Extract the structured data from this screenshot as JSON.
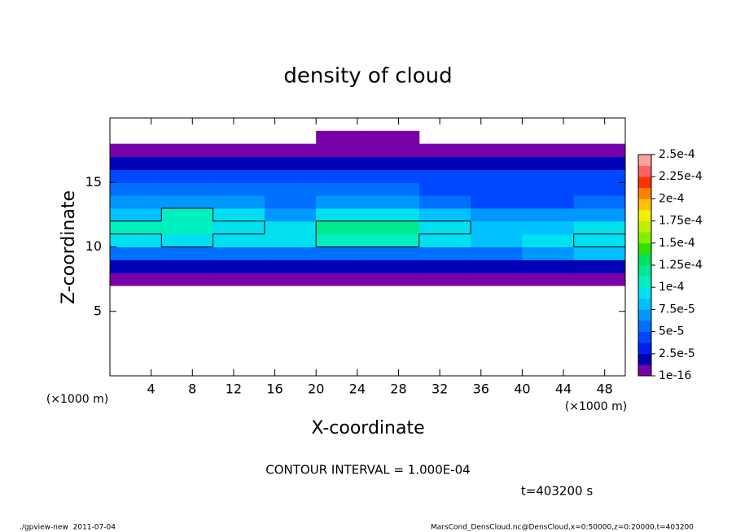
{
  "chart_data": {
    "type": "heatmap",
    "title": "density of cloud",
    "x_label": "X-coordinate",
    "y_label": "Z-coordinate",
    "x_unit": "(×1000 m)",
    "y_unit": "(×1000 m)",
    "xlim": [
      0,
      50
    ],
    "ylim": [
      0,
      20
    ],
    "xticks": [
      4,
      8,
      12,
      16,
      20,
      24,
      28,
      32,
      36,
      40,
      44,
      48
    ],
    "yticks": [
      5,
      10,
      15
    ],
    "x_edges": [
      0,
      5,
      10,
      15,
      20,
      25,
      30,
      35,
      40,
      45,
      50
    ],
    "y_edges": [
      7,
      8,
      9,
      10,
      11,
      12,
      13,
      14,
      15,
      16,
      17,
      18,
      19
    ],
    "values": [
      [
        5e-06,
        5e-06,
        5e-06,
        5e-06,
        5e-06,
        5e-06,
        5e-06,
        5e-06,
        5e-06,
        5e-06
      ],
      [
        2e-05,
        2e-05,
        2e-05,
        2e-05,
        2e-05,
        2e-05,
        2e-05,
        2e-05,
        2e-05,
        2e-05
      ],
      [
        6e-05,
        6e-05,
        6e-05,
        6e-05,
        6e-05,
        6e-05,
        6e-05,
        6e-05,
        7e-05,
        8e-05
      ],
      [
        9e-05,
        0.0001,
        9e-05,
        9e-05,
        0.000105,
        0.000105,
        9e-05,
        8e-05,
        9e-05,
        0.0001
      ],
      [
        0.000105,
        0.00011,
        0.0001,
        9e-05,
        0.000115,
        0.000115,
        0.0001,
        8e-05,
        8e-05,
        9e-05
      ],
      [
        8e-05,
        0.000105,
        9e-05,
        7e-05,
        9e-05,
        9e-05,
        8e-05,
        7e-05,
        7e-05,
        7e-05
      ],
      [
        7e-05,
        7e-05,
        7e-05,
        6e-05,
        7e-05,
        7e-05,
        6e-05,
        5e-05,
        5e-05,
        6e-05
      ],
      [
        6e-05,
        6e-05,
        6e-05,
        6e-05,
        6e-05,
        6e-05,
        5e-05,
        4e-05,
        4e-05,
        5e-05
      ],
      [
        4e-05,
        4e-05,
        4e-05,
        4e-05,
        5e-05,
        5e-05,
        4e-05,
        4e-05,
        4e-05,
        4e-05
      ],
      [
        1.5e-05,
        1.5e-05,
        1.5e-05,
        1.5e-05,
        1.5e-05,
        1.5e-05,
        1.5e-05,
        1.5e-05,
        1.5e-05,
        1.5e-05
      ],
      [
        5e-06,
        5e-06,
        5e-06,
        5e-06,
        5e-06,
        5e-06,
        5e-06,
        5e-06,
        5e-06,
        5e-06
      ],
      [
        null,
        null,
        null,
        null,
        5e-06,
        5e-06,
        null,
        null,
        null,
        null
      ]
    ],
    "clim": [
      1e-16,
      0.00025
    ],
    "colormap": [
      "#7800a8",
      "#0000b4",
      "#0020f0",
      "#0048ff",
      "#0070ff",
      "#0098ff",
      "#00c0ff",
      "#00e0f0",
      "#00f0c0",
      "#00e890",
      "#00e060",
      "#30e000",
      "#80f000",
      "#c0f000",
      "#f0f000",
      "#ffc000",
      "#ff8000",
      "#ff3000",
      "#ff6060",
      "#ffa0a0"
    ],
    "colorbar_ticks": [
      1e-16,
      {
        "value": 2.5e-05,
        "label": "2.5e-5"
      },
      {
        "value": 5e-05,
        "label": "5e-5"
      },
      {
        "value": 7.5e-05,
        "label": "7.5e-5"
      },
      {
        "value": 0.0001,
        "label": "1e-4"
      },
      {
        "value": 0.000125,
        "label": "1.25e-4"
      },
      {
        "value": 0.00015,
        "label": "1.5e-4"
      },
      {
        "value": 0.000175,
        "label": "1.75e-4"
      },
      {
        "value": 0.0002,
        "label": "2e-4"
      },
      {
        "value": 0.000225,
        "label": "2.25e-4"
      },
      {
        "value": 0.00025,
        "label": "2.5e-4"
      }
    ],
    "contour_levels": [
      0.0001
    ],
    "contour_note": "CONTOUR INTERVAL = 1.000E-04",
    "time_label": "t=403200 s",
    "footer_left": "./gpview-new  2011-07-04",
    "footer_right": "MarsCond_DensCloud.nc@DensCloud,x=0:50000,z=0:20000,t=403200"
  }
}
